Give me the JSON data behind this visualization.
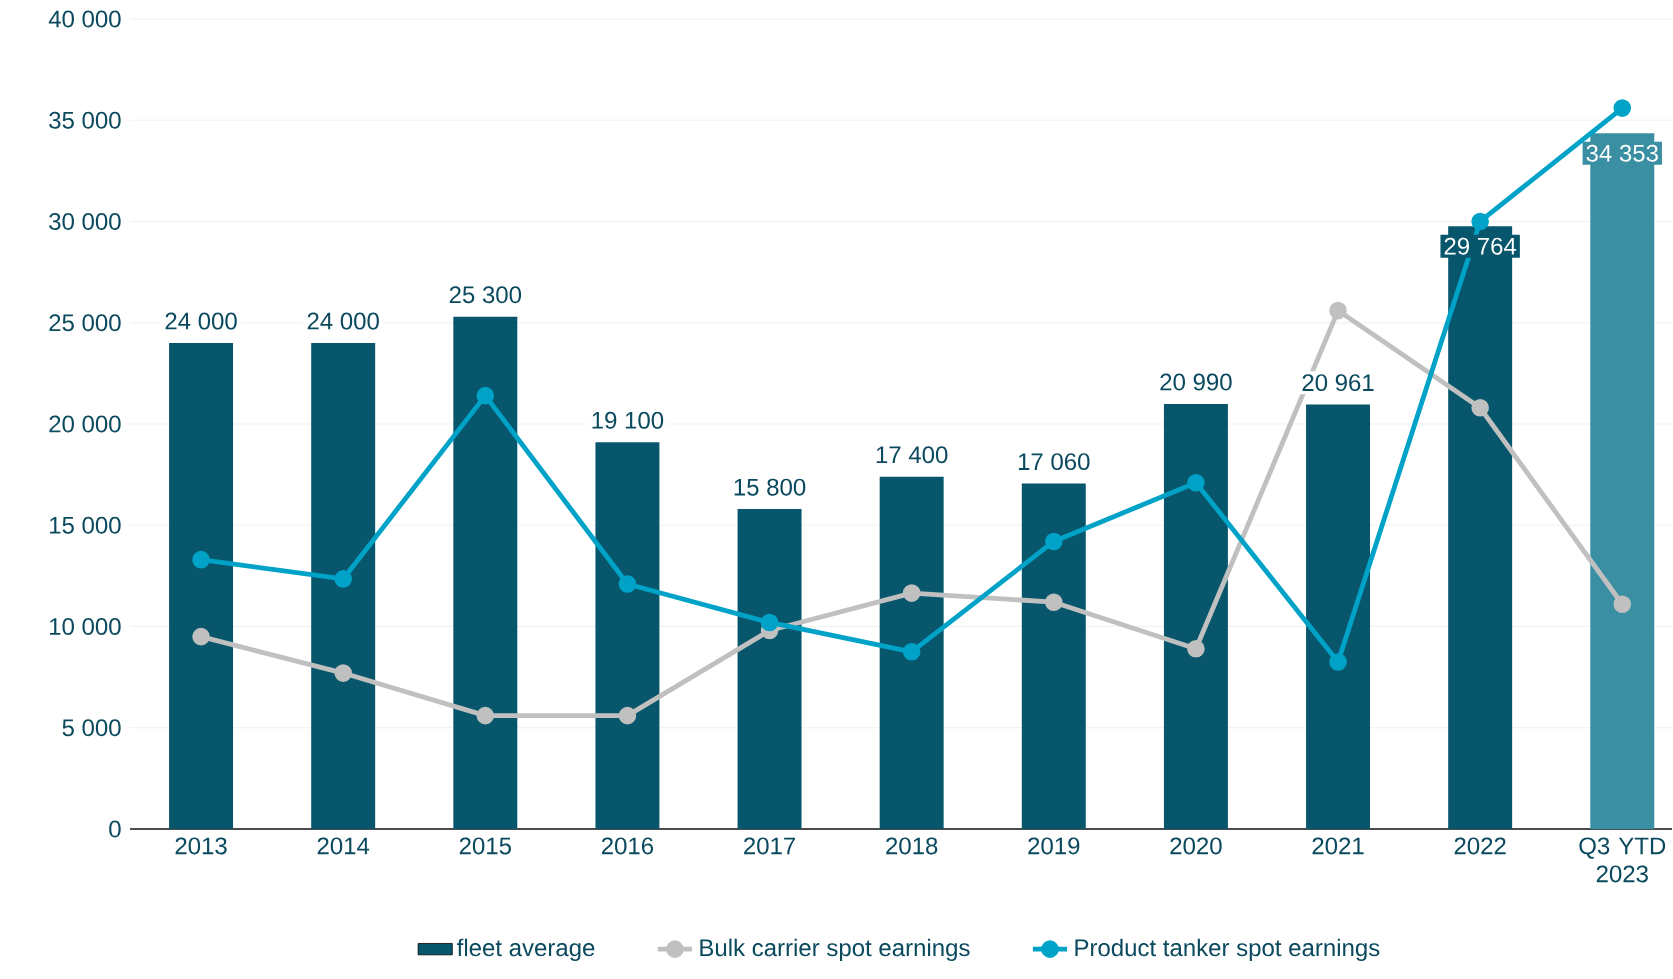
{
  "chart_data": {
    "type": "bar",
    "categories": [
      "2013",
      "2014",
      "2015",
      "2016",
      "2017",
      "2018",
      "2019",
      "2020",
      "2021",
      "2022",
      "Q3 YTD 2023"
    ],
    "series": [
      {
        "name": "fleet average",
        "colors": [
          "#07566b",
          "#07566b",
          "#07566b",
          "#07566b",
          "#07566b",
          "#07566b",
          "#07566b",
          "#07566b",
          "#07566b",
          "#07566b",
          "#3a8fa3"
        ],
        "values": [
          24000,
          24000,
          25300,
          19100,
          15800,
          17400,
          17060,
          20990,
          20961,
          29764,
          34353
        ],
        "value_labels": [
          "24 000",
          "24 000",
          "25 300",
          "19 100",
          "15 800",
          "17 400",
          "17 060",
          "20 990",
          "20 961",
          "29 764",
          "34 353"
        ]
      },
      {
        "name": "Bulk carrier spot earnings",
        "type": "line",
        "color": "#c0c0c0",
        "values": [
          9500,
          7700,
          5600,
          5600,
          9800,
          11650,
          11200,
          8900,
          25600,
          20800,
          11100
        ]
      },
      {
        "name": "Product tanker spot earnings",
        "type": "line",
        "color": "#00a3c7",
        "values": [
          13300,
          12350,
          21400,
          12100,
          10200,
          8750,
          14200,
          17100,
          8250,
          30000,
          35600
        ]
      }
    ],
    "ylim": [
      0,
      40000
    ],
    "yticks": [
      0,
      {
        "value": 5000,
        "label": "5 000"
      },
      {
        "value": 10000,
        "label": "10 000"
      },
      {
        "value": 15000,
        "label": "15 000"
      },
      {
        "value": 20000,
        "label": "20 000"
      },
      {
        "value": 25000,
        "label": "25 000"
      },
      {
        "value": 30000,
        "label": "30 000"
      },
      {
        "value": 35000,
        "label": "35 000"
      },
      {
        "value": 40000,
        "label": "40 000"
      }
    ],
    "grid": "y",
    "legend": "bottom",
    "marker": "circle",
    "line_style": "solid"
  }
}
